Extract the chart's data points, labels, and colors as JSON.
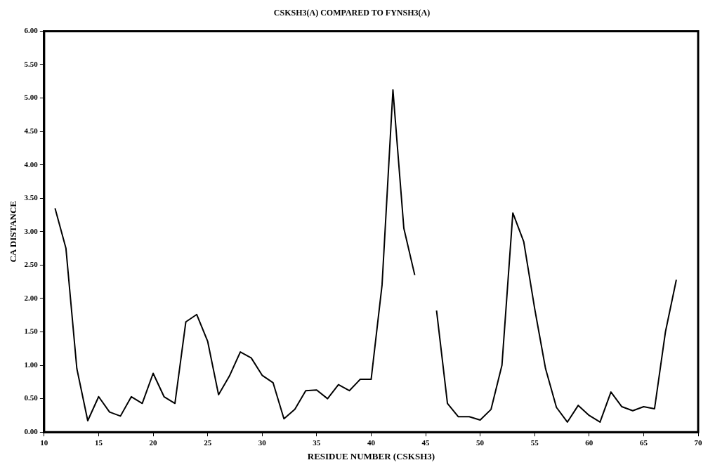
{
  "chart_data": {
    "type": "line",
    "title": "CSKSH3(A) COMPARED TO FYNSH3(A)",
    "xlabel": "RESIDUE NUMBER (CSKSH3)",
    "ylabel": "CA DISTANCE",
    "x": [
      11,
      12,
      13,
      14,
      15,
      16,
      17,
      18,
      19,
      20,
      21,
      22,
      23,
      24,
      25,
      26,
      27,
      28,
      29,
      30,
      31,
      32,
      33,
      34,
      35,
      36,
      37,
      38,
      39,
      40,
      41,
      42,
      43,
      44,
      45,
      46,
      47,
      48,
      49,
      50,
      51,
      52,
      53,
      54,
      55,
      56,
      57,
      58,
      59,
      60,
      61,
      62,
      63,
      64,
      65,
      66,
      67,
      68
    ],
    "series": [
      {
        "color": "#000000",
        "values": [
          3.35,
          2.75,
          0.95,
          0.17,
          0.53,
          0.3,
          0.24,
          0.53,
          0.43,
          0.88,
          0.53,
          0.43,
          1.65,
          1.76,
          1.36,
          0.56,
          0.84,
          1.2,
          1.11,
          0.85,
          0.74,
          0.2,
          0.34,
          0.62,
          0.63,
          0.5,
          0.71,
          0.62,
          0.79,
          0.79,
          2.2,
          5.12,
          3.05,
          2.35,
          null,
          1.82,
          0.43,
          0.23,
          0.23,
          0.18,
          0.34,
          1.0,
          3.28,
          2.85,
          1.85,
          0.95,
          0.37,
          0.15,
          0.4,
          0.25,
          0.15,
          0.6,
          0.38,
          0.32,
          0.38,
          0.35,
          1.5,
          2.28
        ]
      }
    ],
    "xlim": [
      10,
      70
    ],
    "xticks": [
      10,
      15,
      20,
      25,
      30,
      35,
      40,
      45,
      50,
      55,
      60,
      65,
      70
    ],
    "ylim": [
      0,
      6
    ],
    "yticks": [
      {
        "value": 0,
        "label": "0.00"
      },
      {
        "value": 0.5,
        "label": "0.50"
      },
      {
        "value": 1,
        "label": "1.00"
      },
      {
        "value": 1.5,
        "label": "1.50"
      },
      {
        "value": 2,
        "label": "2.00"
      },
      {
        "value": 2.5,
        "label": "2.50"
      },
      {
        "value": 3,
        "label": "3.00"
      },
      {
        "value": 3.5,
        "label": "3.50"
      },
      {
        "value": 4,
        "label": "4.00"
      },
      {
        "value": 4.5,
        "label": "4.50"
      },
      {
        "value": 5,
        "label": "5.00"
      },
      {
        "value": 5.5,
        "label": "5.50"
      },
      {
        "value": 6,
        "label": "6.00"
      }
    ],
    "grid": false,
    "legend": false,
    "marker": "none",
    "line_style": "solid"
  }
}
